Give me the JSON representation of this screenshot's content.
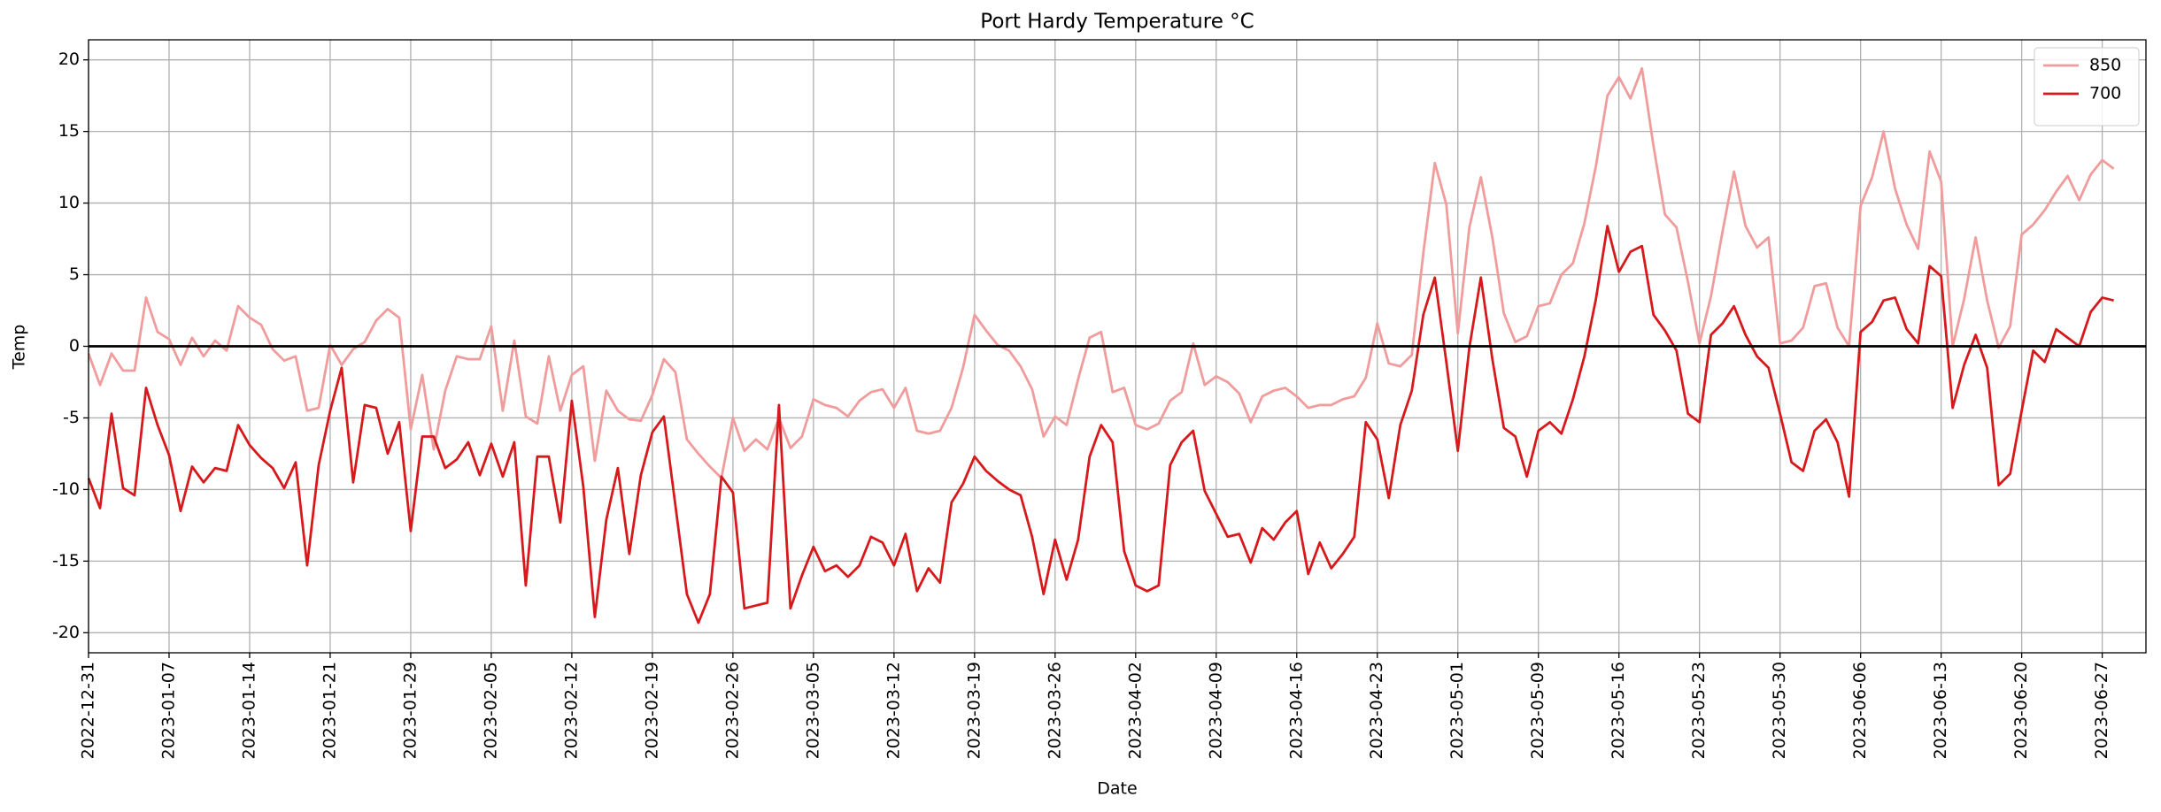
{
  "chart_data": {
    "type": "line",
    "title": "Port Hardy Temperature °C",
    "x_label": "Date",
    "y_label": "Temp",
    "categories": [
      "2022-12-31",
      null,
      null,
      null,
      null,
      null,
      null,
      "2023-01-07",
      null,
      null,
      null,
      null,
      null,
      null,
      "2023-01-14",
      null,
      null,
      null,
      null,
      null,
      null,
      "2023-01-21",
      null,
      null,
      null,
      null,
      null,
      null,
      "2023-01-29",
      null,
      null,
      null,
      null,
      null,
      null,
      "2023-02-05",
      null,
      null,
      null,
      null,
      null,
      null,
      "2023-02-12",
      null,
      null,
      null,
      null,
      null,
      null,
      "2023-02-19",
      null,
      null,
      null,
      null,
      null,
      null,
      "2023-02-26",
      null,
      null,
      null,
      null,
      null,
      null,
      "2023-03-05",
      null,
      null,
      null,
      null,
      null,
      null,
      "2023-03-12",
      null,
      null,
      null,
      null,
      null,
      null,
      "2023-03-19",
      null,
      null,
      null,
      null,
      null,
      null,
      "2023-03-26",
      null,
      null,
      null,
      null,
      null,
      null,
      "2023-04-02",
      null,
      null,
      null,
      null,
      null,
      null,
      "2023-04-09",
      null,
      null,
      null,
      null,
      null,
      null,
      "2023-04-16",
      null,
      null,
      null,
      null,
      null,
      null,
      "2023-04-23",
      null,
      null,
      null,
      null,
      null,
      null,
      "2023-05-01",
      null,
      null,
      null,
      null,
      null,
      null,
      "2023-05-09",
      null,
      null,
      null,
      null,
      null,
      null,
      "2023-05-16",
      null,
      null,
      null,
      null,
      null,
      null,
      "2023-05-23",
      null,
      null,
      null,
      null,
      null,
      null,
      "2023-05-30",
      null,
      null,
      null,
      null,
      null,
      null,
      "2023-06-06",
      null,
      null,
      null,
      null,
      null,
      null,
      "2023-06-13",
      null,
      null,
      null,
      null,
      null,
      null,
      "2023-06-20",
      null,
      null,
      null,
      null,
      null,
      null,
      "2023-06-27",
      null
    ],
    "series": [
      {
        "name": "850",
        "color": "#f19c9c",
        "values": [
          -0.5,
          -2.7,
          -0.5,
          -1.7,
          -1.7,
          3.4,
          1.0,
          0.5,
          -1.3,
          0.6,
          -0.7,
          0.4,
          -0.3,
          2.8,
          2.0,
          1.5,
          -0.2,
          -1.0,
          -0.7,
          -4.5,
          -4.3,
          0.1,
          -1.3,
          -0.2,
          0.3,
          1.8,
          2.6,
          2.0,
          -5.8,
          -2.0,
          -7.2,
          -3.1,
          -0.7,
          -0.9,
          -0.9,
          1.4,
          -4.5,
          0.4,
          -4.9,
          -5.4,
          -0.7,
          -4.5,
          -2.0,
          -1.4,
          -8.0,
          -3.1,
          -4.5,
          -5.1,
          -5.2,
          -3.4,
          -0.9,
          -1.8,
          -6.5,
          -7.5,
          -8.4,
          -9.2,
          -5.0,
          -7.3,
          -6.5,
          -7.2,
          -5.0,
          -7.1,
          -6.3,
          -3.7,
          -4.1,
          -4.3,
          -4.9,
          -3.8,
          -3.2,
          -3.0,
          -4.3,
          -2.9,
          -5.9,
          -6.1,
          -5.9,
          -4.3,
          -1.5,
          2.2,
          1.1,
          0.1,
          -0.3,
          -1.4,
          -3.0,
          -6.3,
          -4.9,
          -5.5,
          -2.3,
          0.6,
          1.0,
          -3.2,
          -2.9,
          -5.5,
          -5.8,
          -5.4,
          -3.8,
          -3.2,
          0.2,
          -2.7,
          -2.1,
          -2.5,
          -3.3,
          -5.3,
          -3.5,
          -3.1,
          -2.9,
          -3.5,
          -4.3,
          -4.1,
          -4.1,
          -3.7,
          -3.5,
          -2.2,
          1.6,
          -1.2,
          -1.4,
          -0.6,
          6.5,
          12.8,
          9.9,
          0.9,
          8.3,
          11.8,
          7.6,
          2.3,
          0.3,
          0.7,
          2.8,
          3.0,
          5.0,
          5.8,
          8.6,
          12.6,
          17.5,
          18.8,
          17.3,
          19.4,
          14.0,
          9.2,
          8.3,
          4.5,
          0.2,
          3.5,
          8.0,
          12.2,
          8.4,
          6.9,
          7.6,
          0.2,
          0.4,
          1.3,
          4.2,
          4.4,
          1.3,
          0.0,
          9.8,
          11.8,
          15.0,
          11.0,
          8.5,
          6.8,
          13.6,
          11.5,
          0.0,
          3.3,
          7.6,
          3.2,
          -0.1,
          1.4,
          7.8,
          8.5,
          9.5,
          10.8,
          11.9,
          10.2,
          12.0,
          13.0,
          12.4
        ]
      },
      {
        "name": "700",
        "color": "#d7191c",
        "values": [
          -9.2,
          -11.3,
          -4.7,
          -9.9,
          -10.4,
          -2.9,
          -5.5,
          -7.6,
          -11.5,
          -8.4,
          -9.5,
          -8.5,
          -8.7,
          -5.5,
          -6.9,
          -7.8,
          -8.5,
          -9.9,
          -8.1,
          -15.3,
          -8.3,
          -4.5,
          -1.5,
          -9.5,
          -4.1,
          -4.3,
          -7.5,
          -5.3,
          -12.9,
          -6.3,
          -6.3,
          -8.5,
          -7.9,
          -6.7,
          -9.0,
          -6.8,
          -9.1,
          -6.7,
          -16.7,
          -7.7,
          -7.7,
          -12.3,
          -3.8,
          -9.8,
          -18.9,
          -12.1,
          -8.5,
          -14.5,
          -9.0,
          -6.0,
          -4.9,
          -11.1,
          -17.3,
          -19.3,
          -17.3,
          -9.1,
          -10.2,
          -18.3,
          -18.1,
          -17.9,
          -4.1,
          -18.3,
          -16.0,
          -14.0,
          -15.7,
          -15.3,
          -16.1,
          -15.3,
          -13.3,
          -13.7,
          -15.3,
          -13.1,
          -17.1,
          -15.5,
          -16.5,
          -10.9,
          -9.6,
          -7.7,
          -8.7,
          -9.4,
          -10.0,
          -10.4,
          -13.3,
          -17.3,
          -13.5,
          -16.3,
          -13.5,
          -7.7,
          -5.5,
          -6.7,
          -14.3,
          -16.7,
          -17.1,
          -16.7,
          -8.3,
          -6.7,
          -5.9,
          -10.1,
          -11.7,
          -13.3,
          -13.1,
          -15.1,
          -12.7,
          -13.5,
          -12.3,
          -11.5,
          -15.9,
          -13.7,
          -15.5,
          -14.5,
          -13.3,
          -5.3,
          -6.5,
          -10.6,
          -5.5,
          -3.1,
          2.2,
          4.8,
          -1.1,
          -7.3,
          -0.1,
          4.8,
          -0.9,
          -5.7,
          -6.3,
          -9.1,
          -5.9,
          -5.3,
          -6.1,
          -3.7,
          -0.7,
          3.3,
          8.4,
          5.2,
          6.6,
          7.0,
          2.2,
          1.1,
          -0.3,
          -4.7,
          -5.3,
          0.8,
          1.6,
          2.8,
          0.8,
          -0.7,
          -1.5,
          -4.7,
          -8.1,
          -8.7,
          -5.9,
          -5.1,
          -6.7,
          -10.5,
          1.0,
          1.7,
          3.2,
          3.4,
          1.2,
          0.2,
          5.6,
          4.9,
          -4.3,
          -1.3,
          0.8,
          -1.5,
          -9.7,
          -8.9,
          -4.5,
          -0.3,
          -1.1,
          1.2,
          0.6,
          0.0,
          2.4,
          3.4,
          3.2
        ]
      }
    ],
    "xlim": [
      0,
      178.8
    ],
    "ylim": [
      -21.4,
      21.4
    ],
    "yticks": [
      -20,
      -15,
      -10,
      -5,
      0,
      5,
      10,
      15,
      20
    ],
    "hline": 0,
    "grid": true,
    "legend": "upper right"
  }
}
